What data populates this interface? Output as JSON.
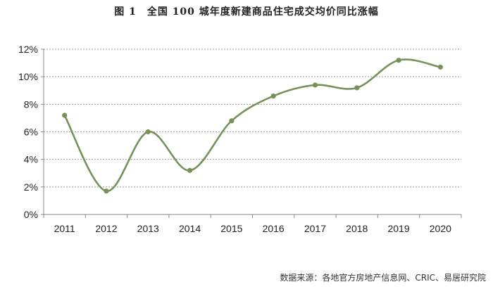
{
  "chart_data": {
    "type": "line",
    "title": "图 1　全国 100 城年度新建商品住宅成交均价同比涨幅",
    "xlabel": "",
    "ylabel": "",
    "categories": [
      "2011",
      "2012",
      "2013",
      "2014",
      "2015",
      "2016",
      "2017",
      "2018",
      "2019",
      "2020"
    ],
    "series": [
      {
        "values": [
          7.2,
          1.7,
          6.0,
          3.2,
          6.8,
          8.6,
          9.4,
          9.2,
          11.2,
          10.7
        ]
      }
    ],
    "ylim": [
      0,
      12
    ],
    "yticks": [
      0,
      2,
      4,
      6,
      8,
      10,
      12
    ],
    "ytick_labels": [
      "0%",
      "2%",
      "4%",
      "6%",
      "8%",
      "10%",
      "12%"
    ],
    "grid": true,
    "legend": "none",
    "smooth": true,
    "colors": {
      "series": "#76925a",
      "grid": "#999999",
      "axis": "#888888"
    }
  },
  "source_note": "数据来源：各地官方房地产信息网、CRIC、易居研究院"
}
